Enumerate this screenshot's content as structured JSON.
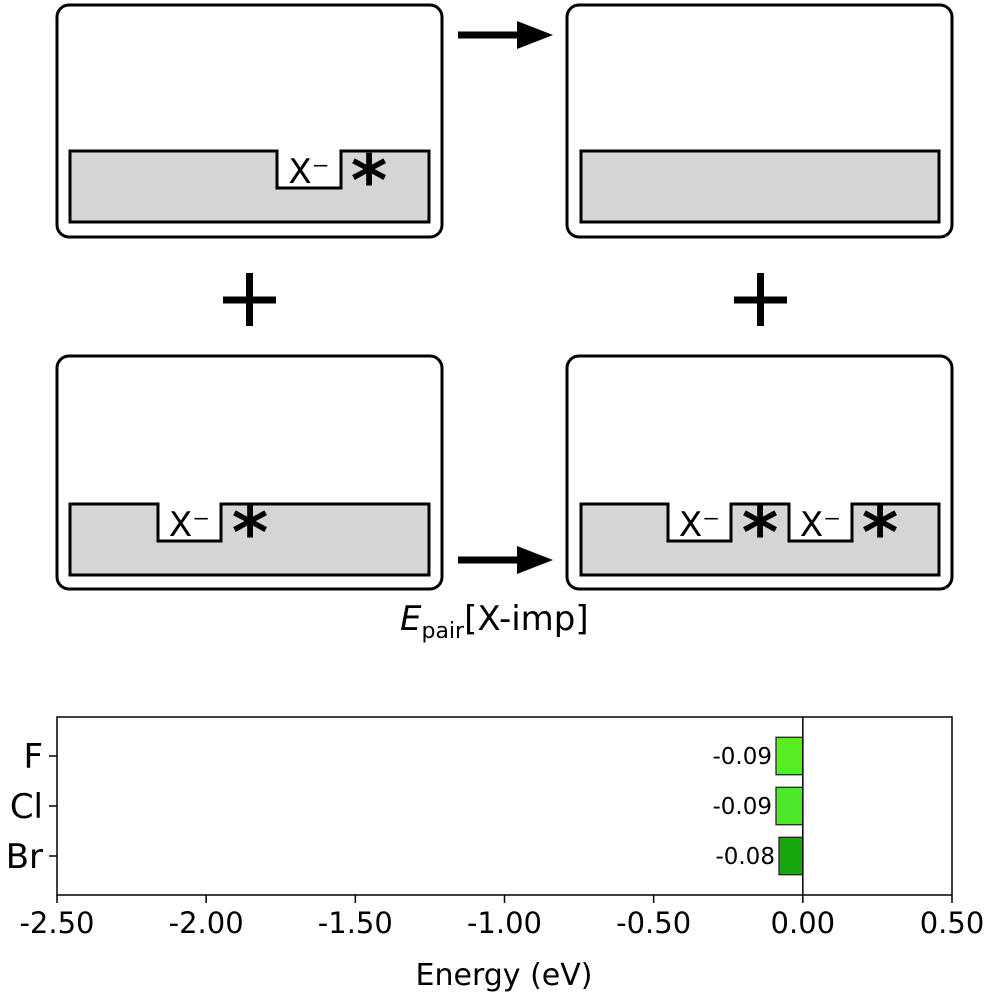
{
  "diagram": {
    "ion_label": "X⁻",
    "star": "*",
    "formula": {
      "main": "E",
      "sub": "pair",
      "rest": "[X-imp]"
    }
  },
  "chart_data": {
    "type": "bar",
    "orientation": "horizontal",
    "categories": [
      "F",
      "Cl",
      "Br"
    ],
    "values": [
      -0.09,
      -0.09,
      -0.08
    ],
    "value_labels": [
      "-0.09",
      "-0.09",
      "-0.08"
    ],
    "colors": [
      "#55ee22",
      "#4ee82b",
      "#17a80d"
    ],
    "xlabel": "Energy (eV)",
    "xlim": [
      -2.5,
      0.5
    ],
    "xticks": [
      -2.5,
      -2.0,
      -1.5,
      -1.0,
      -0.5,
      0.0,
      0.5
    ],
    "xtick_labels": [
      "-2.50",
      "-2.00",
      "-1.50",
      "-1.00",
      "-0.50",
      "0.00",
      "0.50"
    ],
    "zero_line": true,
    "grid": false
  }
}
